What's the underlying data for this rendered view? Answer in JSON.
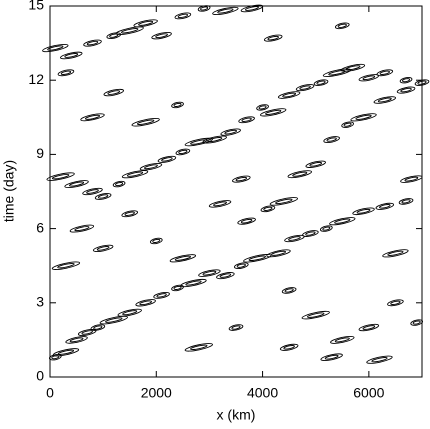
{
  "chart_data": {
    "type": "contour",
    "xlabel": "x (km)",
    "ylabel": "time (day)",
    "xlim": [
      0,
      7000
    ],
    "ylim": [
      0,
      15
    ],
    "xticks": [
      0,
      2000,
      4000,
      6000
    ],
    "yticks": [
      0,
      3,
      6,
      9,
      12,
      15
    ],
    "color": "#000000",
    "x": [
      100,
      300,
      500,
      700,
      900,
      1200,
      1500,
      1800,
      2100,
      2400,
      2700,
      3000,
      3300,
      3600,
      3900,
      4300,
      4600,
      4900,
      5200,
      5500,
      5900,
      6300,
      6700,
      200,
      500,
      800,
      1000,
      1300,
      1600,
      1900,
      2200,
      2500,
      2800,
      3100,
      3400,
      3700,
      4000,
      4200,
      4500,
      4800,
      5100,
      5400,
      5700,
      6000,
      6300,
      6700,
      100,
      400,
      800,
      1200,
      1500,
      1800,
      2100,
      2500,
      2900,
      3300,
      3800,
      3700,
      4100,
      4400,
      4700,
      5000,
      5300,
      5600,
      5900,
      6300,
      6700,
      7000,
      300,
      600,
      1000,
      1500,
      2000,
      2500,
      3200,
      3600,
      4500,
      5000,
      5500,
      6000,
      6500,
      6900,
      6200,
      5300,
      4500,
      3500,
      2800,
      800,
      1200,
      300,
      2400,
      6500,
      6800,
      4200,
      5500,
      1800
    ],
    "y": [
      0.8,
      1.0,
      1.5,
      1.8,
      2.0,
      2.3,
      2.6,
      3.0,
      3.3,
      3.6,
      3.8,
      4.2,
      4.1,
      4.5,
      4.8,
      5.0,
      5.6,
      5.8,
      6.0,
      6.3,
      6.7,
      6.9,
      7.1,
      8.1,
      7.8,
      7.5,
      7.3,
      7.8,
      8.2,
      8.5,
      8.8,
      9.1,
      9.5,
      9.6,
      9.9,
      10.4,
      10.9,
      10.7,
      11.4,
      11.7,
      11.9,
      12.3,
      12.5,
      12.1,
      12.3,
      12.0,
      13.3,
      13.0,
      13.5,
      13.8,
      14.0,
      14.3,
      13.8,
      14.6,
      14.9,
      14.8,
      14.9,
      6.3,
      6.8,
      7.1,
      8.2,
      8.6,
      9.6,
      10.2,
      10.5,
      11.2,
      11.6,
      11.9,
      4.5,
      6.0,
      5.2,
      6.6,
      5.5,
      4.8,
      7.0,
      8.0,
      3.5,
      2.5,
      1.5,
      2.0,
      3.0,
      2.2,
      0.7,
      0.8,
      1.2,
      2.0,
      1.2,
      10.5,
      11.5,
      12.3,
      11.0,
      5.0,
      8.0,
      13.7,
      14.2,
      10.3
    ]
  }
}
